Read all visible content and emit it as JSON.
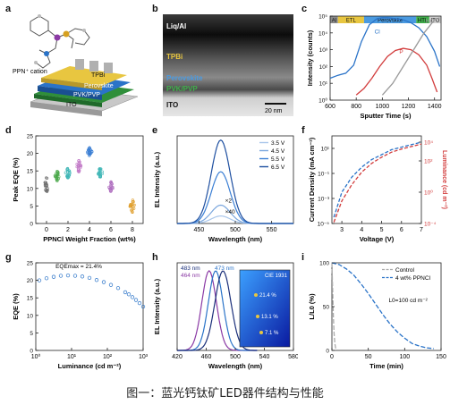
{
  "caption": "图一：蓝光钙钛矿LED器件结构与性能",
  "colors": {
    "blue": "#2a73c8",
    "red": "#d23c3c",
    "green": "#2f8f3a",
    "teal": "#1ea3a3",
    "purple": "#8b3aa5",
    "gray": "#9a9a9a"
  },
  "panels": {
    "a": {
      "label": "a",
      "cation_label": "PPN⁺ cation",
      "layers": [
        "TPBi",
        "Perovskite",
        "PVK/PVP",
        "ITO"
      ]
    },
    "b": {
      "label": "b",
      "layers": [
        "Liq/Al",
        "TPBi",
        "Perovskite",
        "PVK/PVP",
        "ITO"
      ],
      "scale_bar": "20 nm"
    },
    "c": {
      "label": "c",
      "bands": [
        "Al",
        "ETL",
        "Perovskite",
        "HTL",
        "ITO"
      ],
      "series_labels": [
        "Cl",
        "P",
        "InO"
      ]
    },
    "d": {
      "label": "d"
    },
    "e": {
      "label": "e",
      "legend": [
        "3.5 V",
        "4.5 V",
        "5.5 V",
        "6.5 V"
      ],
      "annotations": [
        "×2",
        "×40"
      ]
    },
    "f": {
      "label": "f"
    },
    "g": {
      "label": "g",
      "annotation": "EQEmax = 21.4%"
    },
    "h": {
      "label": "h",
      "legend": [
        "483 nm",
        "473 nm",
        "464 nm"
      ],
      "inset_title": "CIE 1931",
      "inset_labels": [
        "21.4 %",
        "13.1 %",
        "7.1 %"
      ]
    },
    "i": {
      "label": "i",
      "legend": [
        "Control",
        "4 wt% PPNCl"
      ],
      "annotation": "L0=100 cd m⁻²"
    }
  },
  "chart_data": [
    {
      "id": "c",
      "type": "line",
      "xlabel": "Sputter Time (s)",
      "ylabel": "Intensity (counts)",
      "x_ticks": [
        600,
        800,
        1000,
        1200,
        1400
      ],
      "xlim": [
        600,
        1450
      ],
      "y_scale": "log",
      "ylim": [
        1,
        100000
      ],
      "y_ticks": [
        "10⁰",
        "10¹",
        "10²",
        "10³",
        "10⁴",
        "10⁵"
      ],
      "series": [
        {
          "name": "Cl",
          "color": "#2a73c8",
          "x": [
            600,
            660,
            720,
            780,
            840,
            900,
            960,
            1000,
            1040,
            1100,
            1160,
            1220,
            1280,
            1340,
            1400,
            1440
          ],
          "y": [
            20,
            30,
            40,
            120,
            3000,
            30000,
            70000,
            80000,
            80000,
            70000,
            60000,
            40000,
            20000,
            6000,
            800,
            100
          ]
        },
        {
          "name": "P",
          "color": "#d23c3c",
          "x": [
            800,
            860,
            920,
            980,
            1040,
            1100,
            1160,
            1220,
            1280,
            1340,
            1380,
            1420
          ],
          "y": [
            2,
            5,
            20,
            100,
            400,
            900,
            1200,
            1000,
            500,
            120,
            20,
            3
          ]
        },
        {
          "name": "InO",
          "color": "#9a9a9a",
          "x": [
            1000,
            1080,
            1160,
            1240,
            1320,
            1400,
            1440
          ],
          "y": [
            2,
            10,
            100,
            1000,
            10000,
            60000,
            80000
          ]
        }
      ]
    },
    {
      "id": "d",
      "type": "scatter",
      "xlabel": "PPNCl Weight Fraction (wt%)",
      "ylabel": "Peak EQE (%)",
      "x_ticks": [
        0,
        2,
        4,
        6,
        8
      ],
      "xlim": [
        -1,
        9
      ],
      "ylim": [
        0,
        25
      ],
      "y_ticks": [
        0,
        5,
        10,
        15,
        20,
        25
      ],
      "groups": [
        {
          "x": 0,
          "mean": 11,
          "spread": 2.2,
          "color": "#707070"
        },
        {
          "x": 1,
          "mean": 13.5,
          "spread": 1.5,
          "color": "#4aa84a"
        },
        {
          "x": 2,
          "mean": 14.5,
          "spread": 1.5,
          "color": "#3fb6b6"
        },
        {
          "x": 3,
          "mean": 16.5,
          "spread": 1.8,
          "color": "#c27ac7"
        },
        {
          "x": 4,
          "mean": 20.5,
          "spread": 1.2,
          "color": "#3b7fd4"
        },
        {
          "x": 5,
          "mean": 14.5,
          "spread": 1.4,
          "color": "#3fb6b6"
        },
        {
          "x": 6,
          "mean": 10.5,
          "spread": 1.5,
          "color": "#b070c0"
        },
        {
          "x": 8,
          "mean": 5,
          "spread": 1.8,
          "color": "#e0a030"
        }
      ]
    },
    {
      "id": "e",
      "type": "line",
      "xlabel": "Wavelength (nm)",
      "ylabel": "EL Intensity (a.u.)",
      "x_ticks": [
        450,
        500,
        550
      ],
      "xlim": [
        420,
        580
      ],
      "ylim": [
        0,
        1.05
      ],
      "series": [
        {
          "name": "3.5 V",
          "color": "#a9c6ea",
          "center": 480,
          "amp": 0.09,
          "width": 13
        },
        {
          "name": "4.5 V",
          "color": "#7aa6dd",
          "center": 480,
          "amp": 0.22,
          "width": 13
        },
        {
          "name": "5.5 V",
          "color": "#3b7fd4",
          "center": 480,
          "amp": 0.62,
          "width": 13
        },
        {
          "name": "6.5 V",
          "color": "#1e4fa0",
          "center": 480,
          "amp": 1.0,
          "width": 13
        }
      ]
    },
    {
      "id": "f",
      "type": "line",
      "xlabel": "Voltage (V)",
      "ylabel": "Current Density (mA cm⁻²)",
      "y2label": "Luminance (cd m⁻²)",
      "x_ticks": [
        3,
        4,
        5,
        6,
        7
      ],
      "xlim": [
        2.5,
        7
      ],
      "ylim_log": [
        -5,
        2
      ],
      "y_ticks": [
        "10⁻⁵",
        "10⁻³",
        "10⁻¹",
        "10¹"
      ],
      "y2_ticks": [
        "10⁻⁴",
        "10⁰",
        "10²",
        "10⁴"
      ],
      "series": [
        {
          "name": "Current Density",
          "color": "#2a73c8",
          "x": [
            2.6,
            3,
            3.5,
            4,
            4.5,
            5,
            5.5,
            6,
            6.5,
            7
          ],
          "y_log": [
            -4.5,
            -2.5,
            -1.3,
            -0.5,
            0.1,
            0.5,
            0.9,
            1.1,
            1.3,
            1.5
          ]
        },
        {
          "name": "Luminance",
          "color": "#d23c3c",
          "x": [
            2.6,
            3,
            3.5,
            4,
            4.5,
            5,
            5.5,
            6,
            6.5,
            7
          ],
          "y_log": [
            -4.9,
            -3.2,
            -1.9,
            -0.9,
            -0.2,
            0.3,
            0.7,
            0.95,
            1.15,
            1.35
          ]
        }
      ]
    },
    {
      "id": "g",
      "type": "scatter",
      "xlabel": "Luminance (cd m⁻²)",
      "ylabel": "EQE (%)",
      "x_scale": "log",
      "x_ticks": [
        "10⁰",
        "10¹",
        "10²",
        "10³"
      ],
      "xlim_log": [
        0,
        3
      ],
      "ylim": [
        0,
        25
      ],
      "y_ticks": [
        0,
        5,
        10,
        15,
        20,
        25
      ],
      "x_log": [
        0.1,
        0.3,
        0.5,
        0.7,
        0.9,
        1.1,
        1.3,
        1.5,
        1.7,
        1.9,
        2.1,
        2.3,
        2.5,
        2.6,
        2.7,
        2.8,
        2.9,
        3.0
      ],
      "y": [
        20,
        20.6,
        21,
        21.3,
        21.4,
        21.3,
        21.1,
        20.7,
        20.1,
        19.5,
        18.7,
        17.8,
        16.6,
        16,
        15.2,
        14.4,
        13.5,
        12.5
      ]
    },
    {
      "id": "h",
      "type": "line",
      "xlabel": "Wavelength (nm)",
      "ylabel": "EL Intensity (a.u.)",
      "x_ticks": [
        420,
        460,
        500,
        540,
        580
      ],
      "xlim": [
        420,
        580
      ],
      "ylim": [
        0,
        1.1
      ],
      "series": [
        {
          "name": "464 nm",
          "color": "#8b3aa5",
          "center": 464,
          "amp": 1.0,
          "width": 10
        },
        {
          "name": "473 nm",
          "color": "#2a73c8",
          "center": 473,
          "amp": 1.0,
          "width": 10
        },
        {
          "name": "483 nm",
          "color": "#1a2f7a",
          "center": 483,
          "amp": 1.0,
          "width": 11
        }
      ]
    },
    {
      "id": "i",
      "type": "line",
      "xlabel": "Time (min)",
      "ylabel": "L/L0 (%)",
      "x_ticks": [
        0,
        50,
        100,
        150
      ],
      "xlim": [
        0,
        150
      ],
      "ylim": [
        0,
        100
      ],
      "y_ticks": [
        0,
        50,
        100
      ],
      "series": [
        {
          "name": "Control",
          "color": "#aaaaaa",
          "x": [
            0,
            1,
            2,
            3,
            4,
            5,
            6
          ],
          "y": [
            100,
            70,
            40,
            20,
            8,
            3,
            1
          ]
        },
        {
          "name": "4 wt% PPNCl",
          "color": "#2a73c8",
          "x": [
            0,
            10,
            20,
            30,
            40,
            50,
            60,
            70,
            80,
            90,
            100,
            110,
            120,
            130,
            140
          ],
          "y": [
            100,
            98,
            93,
            86,
            76,
            65,
            53,
            41,
            30,
            21,
            14,
            8,
            5,
            3,
            2
          ]
        }
      ]
    }
  ]
}
